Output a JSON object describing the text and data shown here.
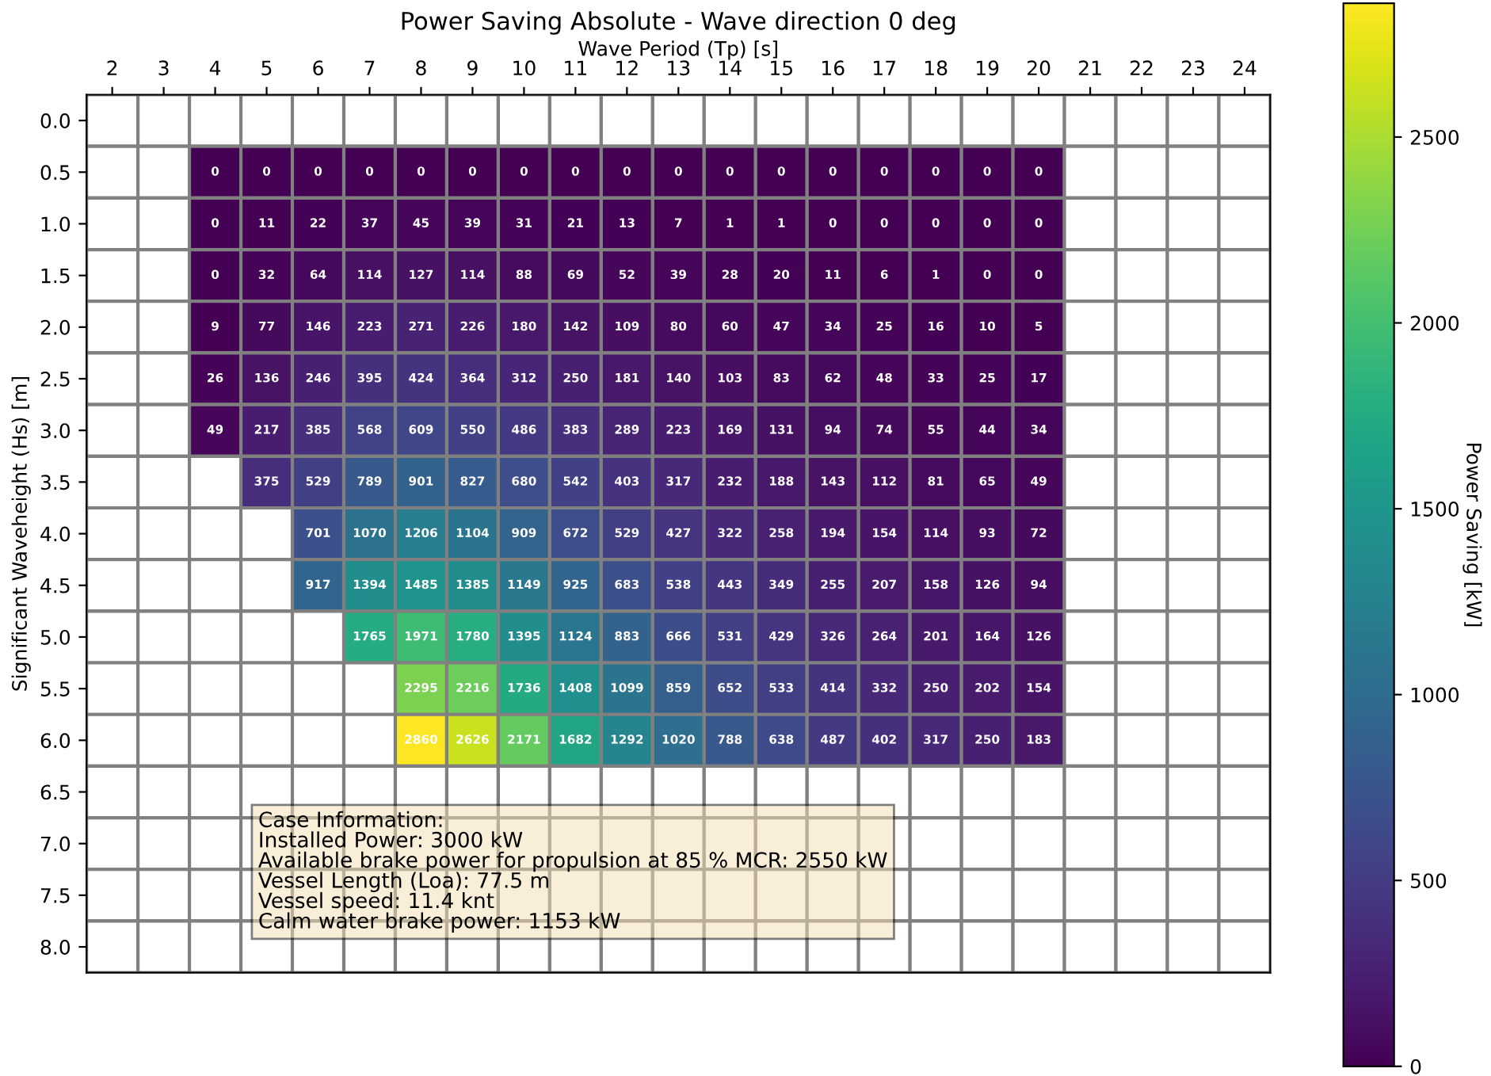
{
  "chart_data": {
    "type": "heatmap",
    "title": "Power Saving Absolute - Wave direction 0 deg",
    "xlabel": "Wave Period (Tp) [s]",
    "ylabel": "Significant Waveheight (Hs) [m]",
    "clabel": "Power Saving [kW]",
    "categories": [
      "2",
      "3",
      "4",
      "5",
      "6",
      "7",
      "8",
      "9",
      "10",
      "11",
      "12",
      "13",
      "14",
      "15",
      "16",
      "17",
      "18",
      "19",
      "20",
      "21",
      "22",
      "23",
      "24"
    ],
    "y_categories": [
      "0.0",
      "0.5",
      "1.0",
      "1.5",
      "2.0",
      "2.5",
      "3.0",
      "3.5",
      "4.0",
      "4.5",
      "5.0",
      "5.5",
      "6.0",
      "6.5",
      "7.0",
      "7.5",
      "8.0"
    ],
    "cells": [
      [
        null,
        null,
        null,
        null,
        null,
        null,
        null,
        null,
        null,
        null,
        null,
        null,
        null,
        null,
        null,
        null,
        null,
        null,
        null,
        null,
        null,
        null,
        null
      ],
      [
        null,
        null,
        0,
        0,
        0,
        0,
        0,
        0,
        0,
        0,
        0,
        0,
        0,
        0,
        0,
        0,
        0,
        0,
        0,
        null,
        null,
        null,
        null
      ],
      [
        null,
        null,
        0,
        11,
        22,
        37,
        45,
        39,
        31,
        21,
        13,
        7,
        1,
        1,
        0,
        0,
        0,
        0,
        0,
        null,
        null,
        null,
        null
      ],
      [
        null,
        null,
        0,
        32,
        64,
        114,
        127,
        114,
        88,
        69,
        52,
        39,
        28,
        20,
        11,
        6,
        1,
        0,
        0,
        null,
        null,
        null,
        null
      ],
      [
        null,
        null,
        9,
        77,
        146,
        223,
        271,
        226,
        180,
        142,
        109,
        80,
        60,
        47,
        34,
        25,
        16,
        10,
        5,
        null,
        null,
        null,
        null
      ],
      [
        null,
        null,
        26,
        136,
        246,
        395,
        424,
        364,
        312,
        250,
        181,
        140,
        103,
        83,
        62,
        48,
        33,
        25,
        17,
        null,
        null,
        null,
        null
      ],
      [
        null,
        null,
        49,
        217,
        385,
        568,
        609,
        550,
        486,
        383,
        289,
        223,
        169,
        131,
        94,
        74,
        55,
        44,
        34,
        null,
        null,
        null,
        null
      ],
      [
        null,
        null,
        null,
        375,
        529,
        789,
        901,
        827,
        680,
        542,
        403,
        317,
        232,
        188,
        143,
        112,
        81,
        65,
        49,
        null,
        null,
        null,
        null
      ],
      [
        null,
        null,
        null,
        null,
        701,
        1070,
        1206,
        1104,
        909,
        672,
        529,
        427,
        322,
        258,
        194,
        154,
        114,
        93,
        72,
        null,
        null,
        null,
        null
      ],
      [
        null,
        null,
        null,
        null,
        917,
        1394,
        1485,
        1385,
        1149,
        925,
        683,
        538,
        443,
        349,
        255,
        207,
        158,
        126,
        94,
        null,
        null,
        null,
        null
      ],
      [
        null,
        null,
        null,
        null,
        null,
        1765,
        1971,
        1780,
        1395,
        1124,
        883,
        666,
        531,
        429,
        326,
        264,
        201,
        164,
        126,
        null,
        null,
        null,
        null
      ],
      [
        null,
        null,
        null,
        null,
        null,
        null,
        2295,
        2216,
        1736,
        1408,
        1099,
        859,
        652,
        533,
        414,
        332,
        250,
        202,
        154,
        null,
        null,
        null,
        null
      ],
      [
        null,
        null,
        null,
        null,
        null,
        null,
        2860,
        2626,
        2171,
        1682,
        1292,
        1020,
        788,
        638,
        487,
        402,
        317,
        250,
        183,
        null,
        null,
        null,
        null
      ],
      [
        null,
        null,
        null,
        null,
        null,
        null,
        null,
        null,
        null,
        null,
        null,
        null,
        null,
        null,
        null,
        null,
        null,
        null,
        null,
        null,
        null,
        null,
        null
      ],
      [
        null,
        null,
        null,
        null,
        null,
        null,
        null,
        null,
        null,
        null,
        null,
        null,
        null,
        null,
        null,
        null,
        null,
        null,
        null,
        null,
        null,
        null,
        null
      ],
      [
        null,
        null,
        null,
        null,
        null,
        null,
        null,
        null,
        null,
        null,
        null,
        null,
        null,
        null,
        null,
        null,
        null,
        null,
        null,
        null,
        null,
        null,
        null
      ],
      [
        null,
        null,
        null,
        null,
        null,
        null,
        null,
        null,
        null,
        null,
        null,
        null,
        null,
        null,
        null,
        null,
        null,
        null,
        null,
        null,
        null,
        null,
        null
      ]
    ],
    "clim": [
      0,
      2860
    ],
    "cticks": [
      0,
      500,
      1000,
      1500,
      2000,
      2500
    ],
    "data_labels": true,
    "annotations": [
      "Case Information:\nInstalled Power: 3000 kW\nAvailable brake power for propulsion at 85 % MCR: 2550 kW\nVessel Length (Loa): 77.5 m\nVessel speed: 11.4 knt\nCalm water brake power: 1153 kW"
    ]
  }
}
